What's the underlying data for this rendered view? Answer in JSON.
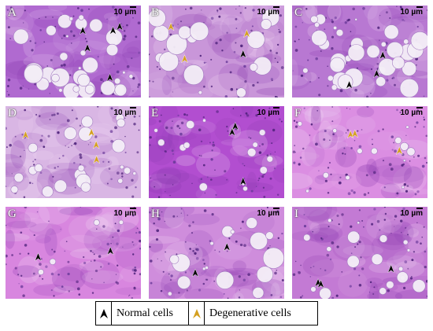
{
  "figure": {
    "scale_text": "10 µm",
    "panels": [
      {
        "letter": "A",
        "bg": "#b06ad0",
        "vacuoles": "many-large",
        "normal_arrows": 5,
        "degenerative_arrows": 0
      },
      {
        "letter": "B",
        "bg": "#c996d9",
        "vacuoles": "scattered-large",
        "normal_arrows": 1,
        "degenerative_arrows": 3
      },
      {
        "letter": "C",
        "bg": "#b878d2",
        "vacuoles": "many-large",
        "normal_arrows": 3,
        "degenerative_arrows": 0
      },
      {
        "letter": "D",
        "bg": "#d9b6e4",
        "vacuoles": "clustered",
        "normal_arrows": 0,
        "degenerative_arrows": 4
      },
      {
        "letter": "E",
        "bg": "#b24ed0",
        "vacuoles": "small",
        "normal_arrows": 3,
        "degenerative_arrows": 0
      },
      {
        "letter": "F",
        "bg": "#db8ee2",
        "vacuoles": "small",
        "normal_arrows": 0,
        "degenerative_arrows": 3
      },
      {
        "letter": "G",
        "bg": "#d886df",
        "vacuoles": "few",
        "normal_arrows": 2,
        "degenerative_arrows": 0
      },
      {
        "letter": "H",
        "bg": "#cf8ddc",
        "vacuoles": "scattered-large",
        "normal_arrows": 2,
        "degenerative_arrows": 0
      },
      {
        "letter": "I",
        "bg": "#c37ad4",
        "vacuoles": "scattered",
        "normal_arrows": 3,
        "degenerative_arrows": 0
      }
    ]
  },
  "legend": {
    "normal": {
      "label": "Normal cells",
      "color": "#000000",
      "icon": "black-arrowhead-icon"
    },
    "degenerative": {
      "label": "Degenerative cells",
      "color": "#d4a020",
      "icon": "yellow-arrowhead-icon"
    }
  }
}
